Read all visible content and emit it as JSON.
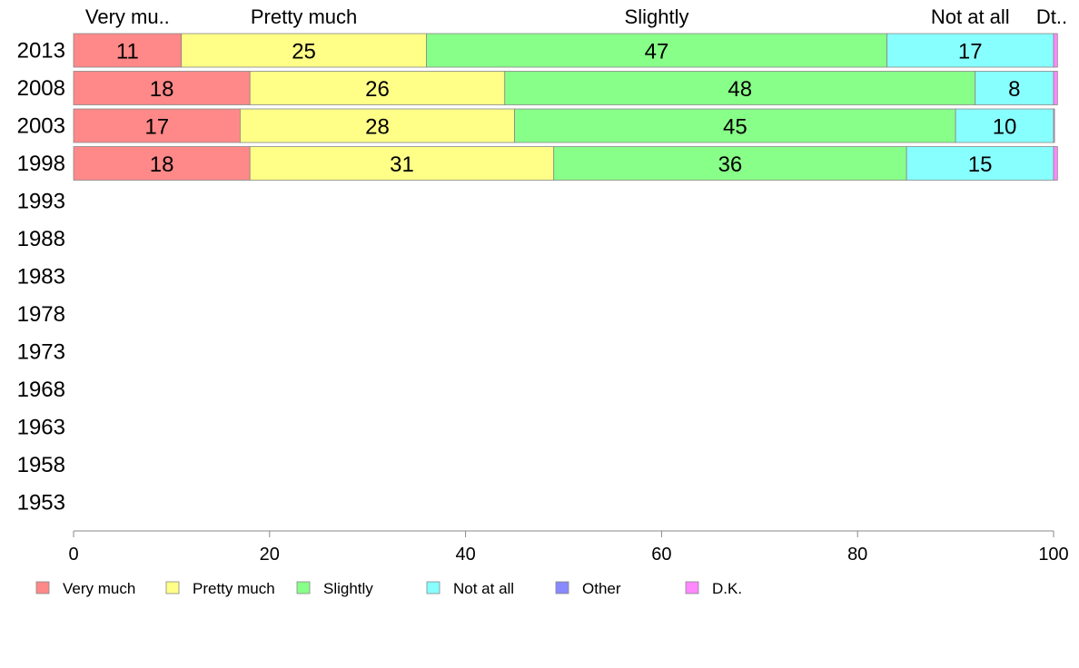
{
  "chart_data": {
    "type": "bar",
    "orientation": "horizontal",
    "stacked": true,
    "categories": [
      "2013",
      "2008",
      "2003",
      "1998",
      "1993",
      "1988",
      "1983",
      "1978",
      "1973",
      "1968",
      "1963",
      "1958",
      "1953"
    ],
    "series": [
      {
        "name": "Very much",
        "color": "#ff8888",
        "values": [
          11,
          18,
          17,
          18,
          null,
          null,
          null,
          null,
          null,
          null,
          null,
          null,
          null
        ]
      },
      {
        "name": "Pretty much",
        "color": "#ffff88",
        "values": [
          25,
          26,
          28,
          31,
          null,
          null,
          null,
          null,
          null,
          null,
          null,
          null,
          null
        ]
      },
      {
        "name": "Slightly",
        "color": "#88ff88",
        "values": [
          47,
          48,
          45,
          36,
          null,
          null,
          null,
          null,
          null,
          null,
          null,
          null,
          null
        ]
      },
      {
        "name": "Not at all",
        "color": "#88ffff",
        "values": [
          17,
          8,
          10,
          15,
          null,
          null,
          null,
          null,
          null,
          null,
          null,
          null,
          null
        ]
      },
      {
        "name": "Other",
        "color": "#8888ff",
        "values": [
          0,
          0,
          0,
          0,
          null,
          null,
          null,
          null,
          null,
          null,
          null,
          null,
          null
        ]
      },
      {
        "name": "D.K.",
        "color": "#ff88ff",
        "values": [
          0.4,
          0.4,
          0.1,
          0.4,
          null,
          null,
          null,
          null,
          null,
          null,
          null,
          null,
          null
        ]
      }
    ],
    "top_labels": [
      "Very mu..",
      "Pretty much",
      "Slightly",
      "Not at all",
      "Dt.."
    ],
    "xlim": [
      0,
      100
    ],
    "xticks": [
      0,
      20,
      40,
      60,
      80,
      100
    ],
    "grid": false,
    "legend_position": "bottom"
  }
}
